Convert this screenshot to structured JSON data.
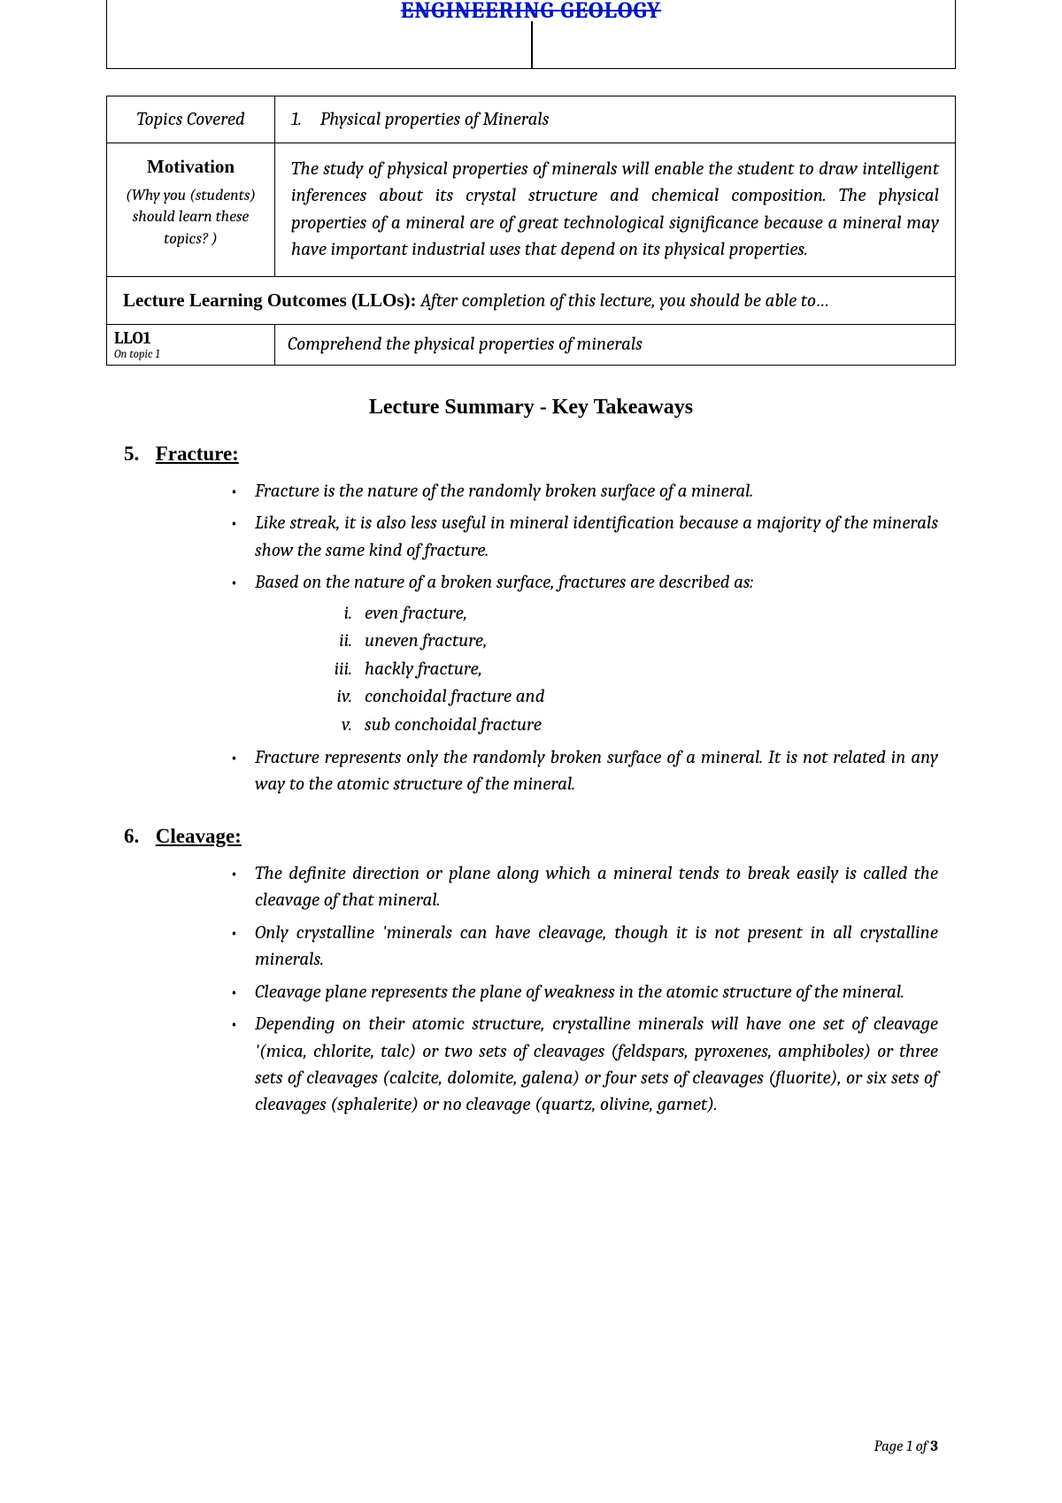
{
  "header": {
    "title": "ENGINEERING GEOLOGY"
  },
  "meta": {
    "topics_label": "Topics Covered",
    "topics_num": "1.",
    "topics_text": "Physical properties of Minerals",
    "motivation_label": "Motivation",
    "motivation_sub1": "(Why  you (students)",
    "motivation_sub2": "should learn these",
    "motivation_sub3": "topics? )",
    "motivation_text": "The study of physical properties of minerals will enable the student to draw intelligent inferences about its crystal structure and chemical composition. The physical properties of a mineral are of great technological significance because a mineral may have important industrial uses that depend on its physical properties.",
    "llo_heading_bold": "Lecture Learning Outcomes (LLOs):",
    "llo_heading_italic": " After completion of this lecture, you should be able to…",
    "llo1_label": "LLO1",
    "llo1_sub": "On topic 1",
    "llo1_text": "Comprehend the physical properties of minerals"
  },
  "summary_title": "Lecture Summary - Key Takeaways",
  "sections": {
    "s5": {
      "num": "5.",
      "title": "Fracture:",
      "b1": "Fracture is the nature of the randomly broken surface of a mineral.",
      "b2": "Like streak, it is also less useful in mineral identification because a majority of the minerals show the same kind of fracture.",
      "b3": "Based on the nature of a broken surface, fractures are described as:",
      "r1": "even fracture,",
      "r2": "uneven fracture,",
      "r3": "hackly fracture,",
      "r4": "conchoidal fracture and",
      "r5": "sub conchoidal fracture",
      "b4": "Fracture represents only the randomly broken surface of a mineral. It is not related in any way to the atomic structure of the mineral."
    },
    "s6": {
      "num": "6.",
      "title": "Cleavage:",
      "b1": "The definite direction or plane along which a mineral tends to break easily is called the cleavage of that mineral.",
      "b2": "Only crystalline 'minerals can have cleavage, though it is not present in all crystalline minerals.",
      "b3": "Cleavage plane represents the plane of weakness in the atomic structure of the mineral.",
      "b4": "Depending on their atomic structure, crystalline minerals will have one set of cleavage '(mica, chlorite, talc) or two sets of cleavages (feldspars, pyroxenes, amphiboles) or three sets of cleavages (calcite, dolomite, galena) or four sets of cleavages (fluorite), or six sets of cleavages (sphalerite) or no cleavage (quartz, olivine, garnet)."
    }
  },
  "footer": {
    "prefix": "Page ",
    "current": "1",
    "of": " of ",
    "total": "3"
  }
}
